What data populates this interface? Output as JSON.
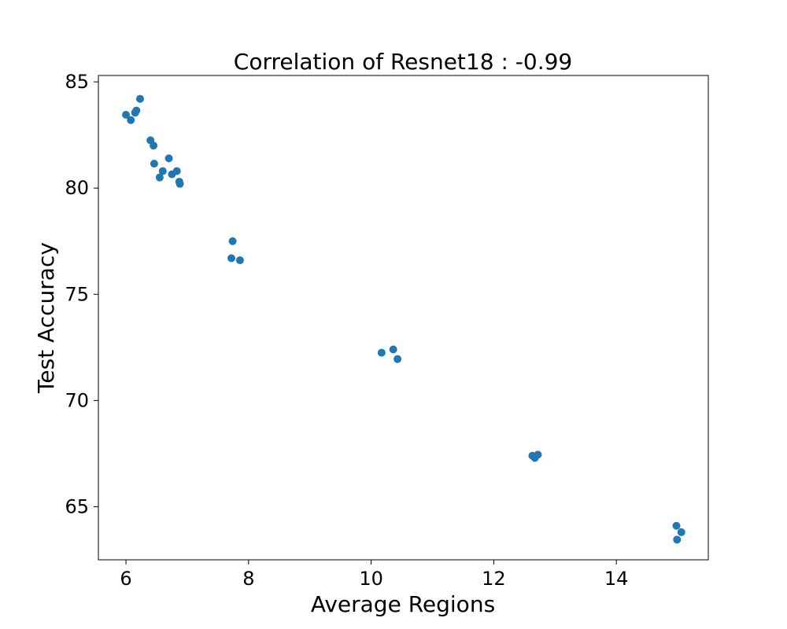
{
  "chart_data": {
    "type": "scatter",
    "title": "Correlation of Resnet18 : -0.99",
    "xlabel": "Average Regions",
    "ylabel": "Test Accuracy",
    "xlim": [
      5.55,
      15.5
    ],
    "ylim": [
      62.5,
      85.3
    ],
    "xticks": [
      6,
      8,
      10,
      12,
      14
    ],
    "yticks": [
      65,
      70,
      75,
      80,
      85
    ],
    "grid": false,
    "marker_color": "#1f77b4",
    "series": [
      {
        "points": [
          {
            "x": 6.0,
            "y": 83.45
          },
          {
            "x": 6.08,
            "y": 83.2
          },
          {
            "x": 6.15,
            "y": 83.55
          },
          {
            "x": 6.17,
            "y": 83.65
          },
          {
            "x": 6.23,
            "y": 84.2
          },
          {
            "x": 6.4,
            "y": 82.25
          },
          {
            "x": 6.45,
            "y": 82.0
          },
          {
            "x": 6.46,
            "y": 81.15
          },
          {
            "x": 6.55,
            "y": 80.5
          },
          {
            "x": 6.6,
            "y": 80.8
          },
          {
            "x": 6.7,
            "y": 81.4
          },
          {
            "x": 6.75,
            "y": 80.65
          },
          {
            "x": 6.83,
            "y": 80.8
          },
          {
            "x": 6.87,
            "y": 80.3
          },
          {
            "x": 6.88,
            "y": 80.2
          },
          {
            "x": 7.72,
            "y": 76.7
          },
          {
            "x": 7.74,
            "y": 77.5
          },
          {
            "x": 7.86,
            "y": 76.6
          },
          {
            "x": 10.17,
            "y": 72.25
          },
          {
            "x": 10.36,
            "y": 72.4
          },
          {
            "x": 10.43,
            "y": 71.95
          },
          {
            "x": 12.63,
            "y": 67.4
          },
          {
            "x": 12.67,
            "y": 67.3
          },
          {
            "x": 12.72,
            "y": 67.45
          },
          {
            "x": 14.98,
            "y": 64.1
          },
          {
            "x": 15.06,
            "y": 63.8
          },
          {
            "x": 14.99,
            "y": 63.45
          }
        ]
      }
    ]
  }
}
